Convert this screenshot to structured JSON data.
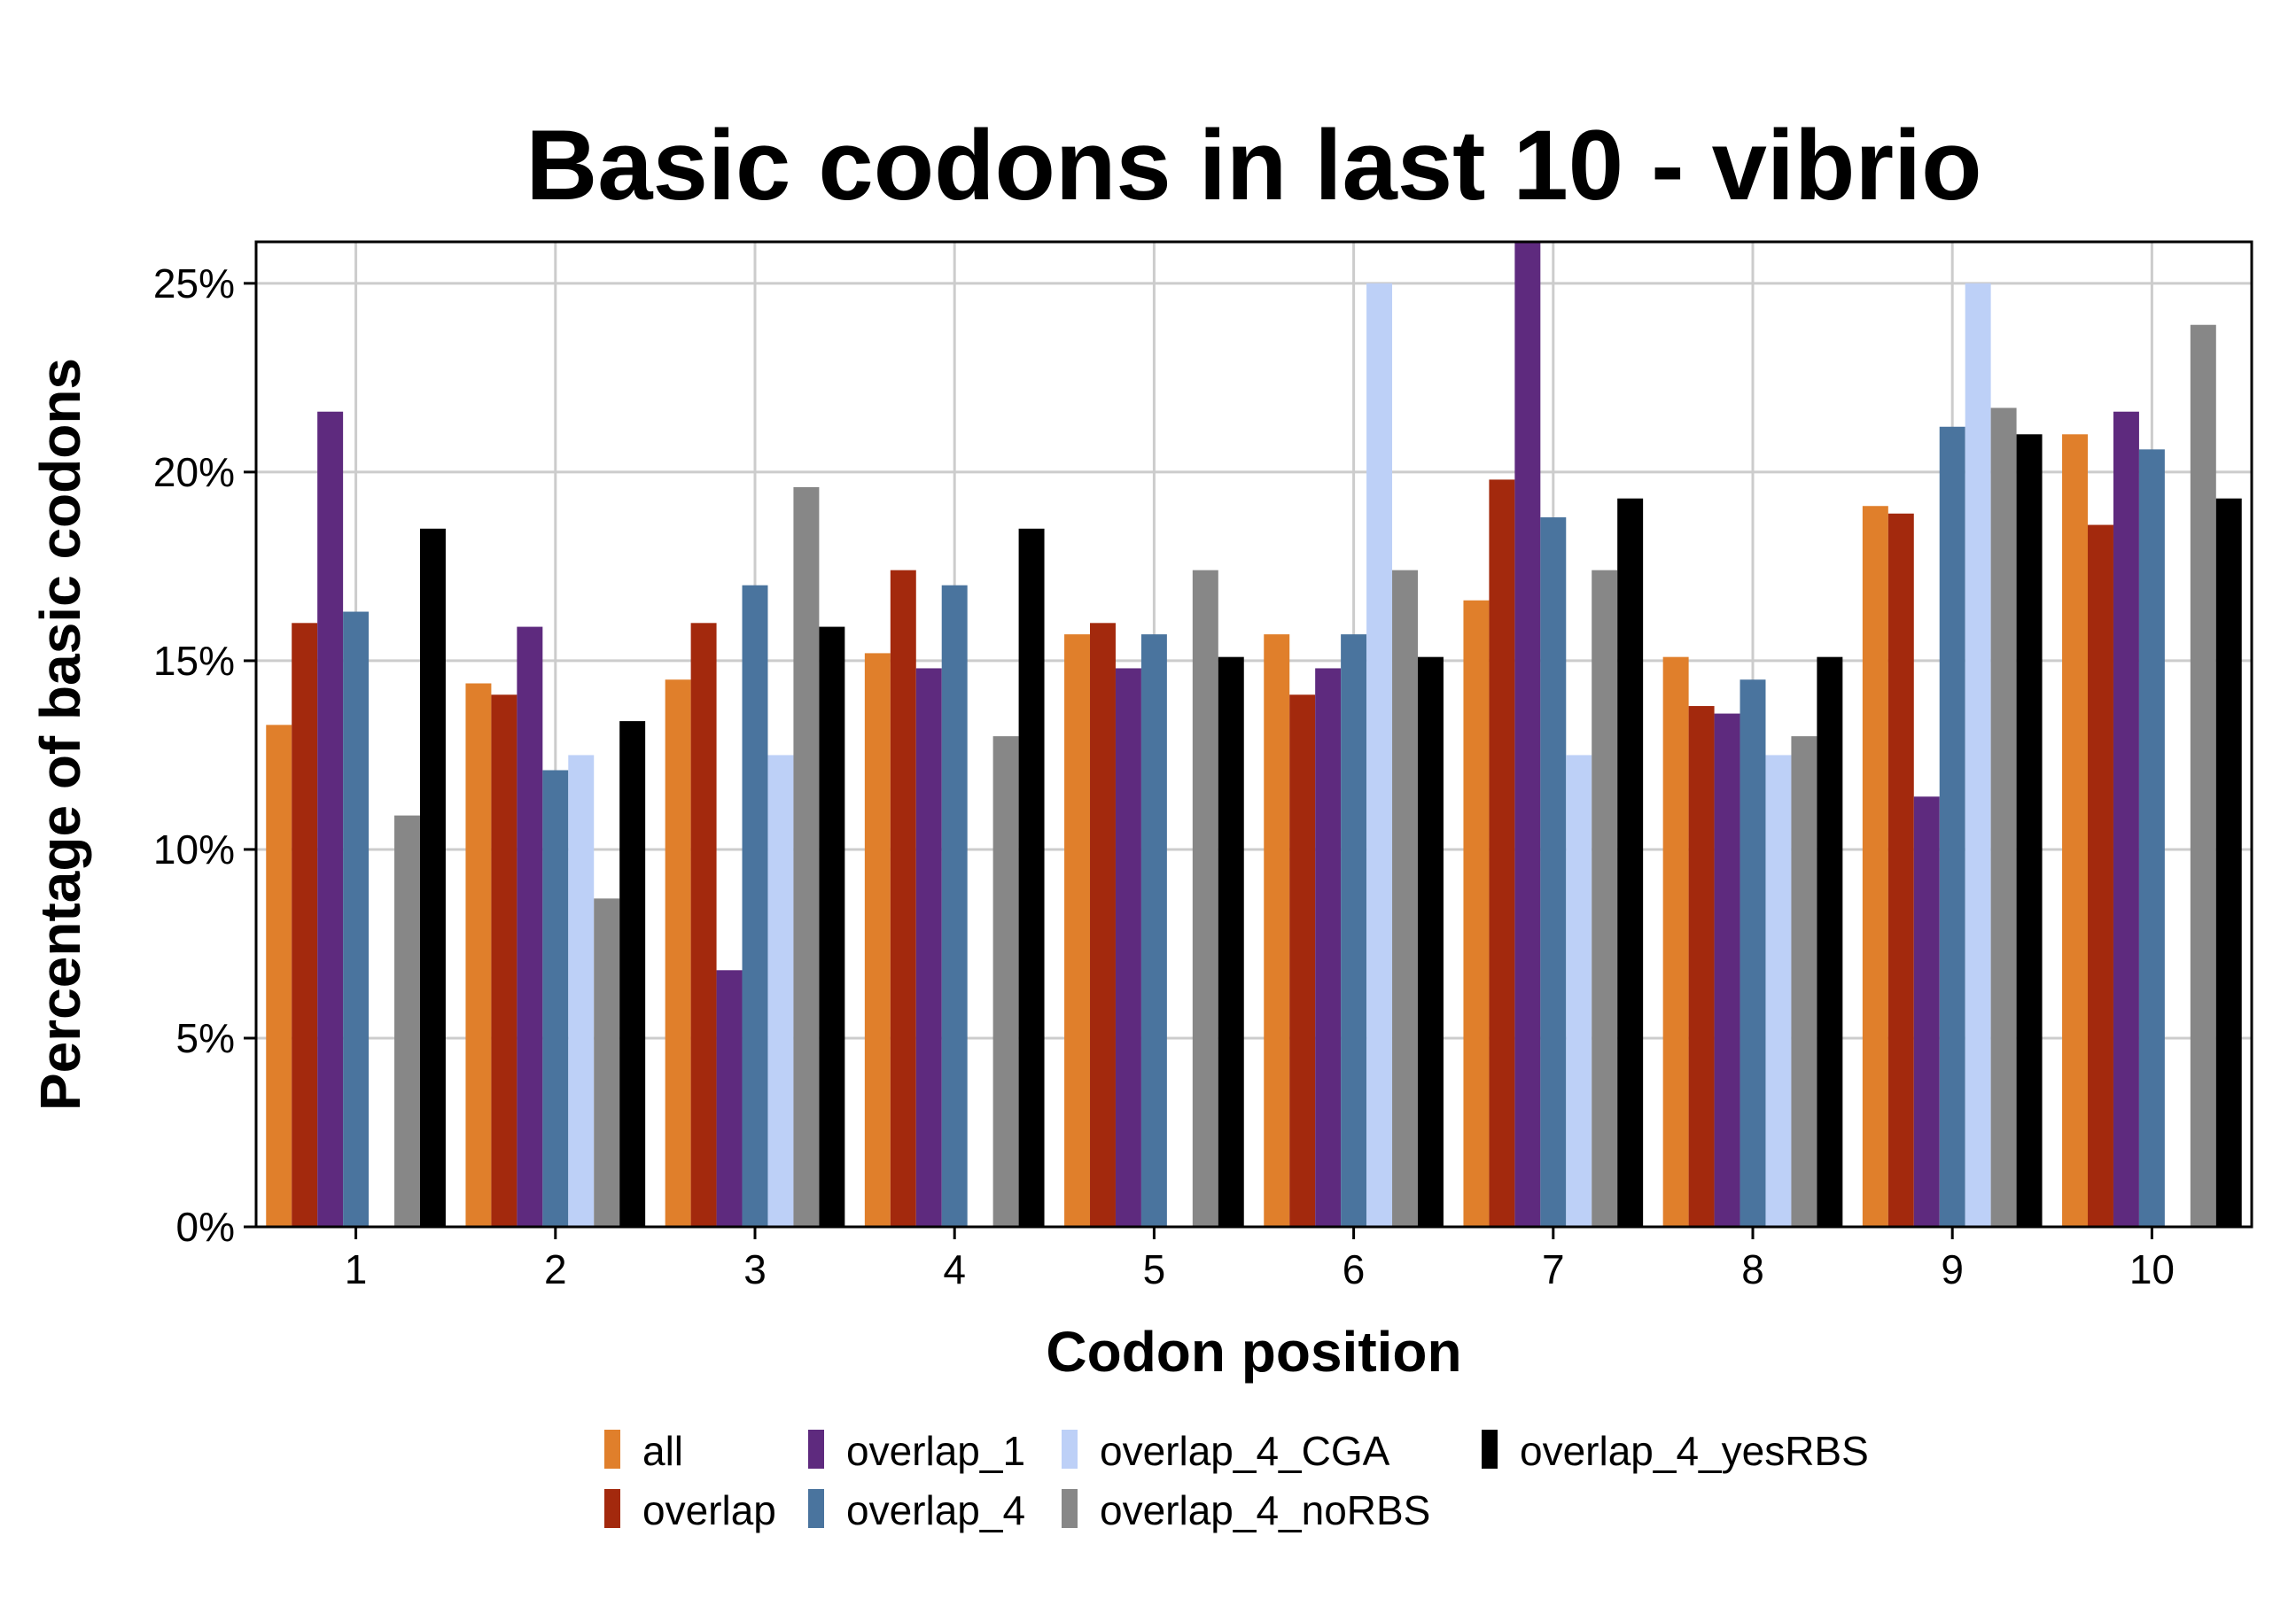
{
  "chart_data": {
    "type": "bar",
    "title": "Basic codons in last 10 - vibrio",
    "xlabel": "Codon position",
    "ylabel": "Percentage of basic codons",
    "categories": [
      "1",
      "2",
      "3",
      "4",
      "5",
      "6",
      "7",
      "8",
      "9",
      "10"
    ],
    "yticks": [
      "0%",
      "5%",
      "10%",
      "15%",
      "20%",
      "25%"
    ],
    "ylim": [
      0,
      26.1
    ],
    "grid": true,
    "legend_position": "bottom",
    "series": [
      {
        "name": "all",
        "color": "#e07f2b",
        "values": [
          13.3,
          14.4,
          14.5,
          15.2,
          15.7,
          15.7,
          16.6,
          15.1,
          19.1,
          21.0
        ]
      },
      {
        "name": "overlap",
        "color": "#a3290d",
        "values": [
          16.0,
          14.1,
          16.0,
          17.4,
          16.0,
          14.1,
          19.8,
          13.8,
          18.9,
          18.6
        ]
      },
      {
        "name": "overlap_1",
        "color": "#5e2a7e",
        "values": [
          21.6,
          15.9,
          6.8,
          14.8,
          14.8,
          14.8,
          26.1,
          13.6,
          11.4,
          21.6
        ]
      },
      {
        "name": "overlap_4",
        "color": "#4a749e",
        "values": [
          16.3,
          12.1,
          17.0,
          17.0,
          15.7,
          15.7,
          18.8,
          14.5,
          21.2,
          20.6
        ]
      },
      {
        "name": "overlap_4_CGA",
        "color": "#bdd0f7",
        "values": [
          0,
          12.5,
          12.5,
          0,
          0,
          25.0,
          12.5,
          12.5,
          25.0,
          0
        ]
      },
      {
        "name": "overlap_4_noRBS",
        "color": "#878787",
        "values": [
          10.9,
          8.7,
          19.6,
          13.0,
          17.4,
          17.4,
          17.4,
          13.0,
          21.7,
          23.9
        ]
      },
      {
        "name": "overlap_4_yesRBS",
        "color": "#000000",
        "values": [
          18.5,
          13.4,
          15.9,
          18.5,
          15.1,
          15.1,
          19.3,
          15.1,
          21.0,
          19.3
        ]
      }
    ]
  }
}
